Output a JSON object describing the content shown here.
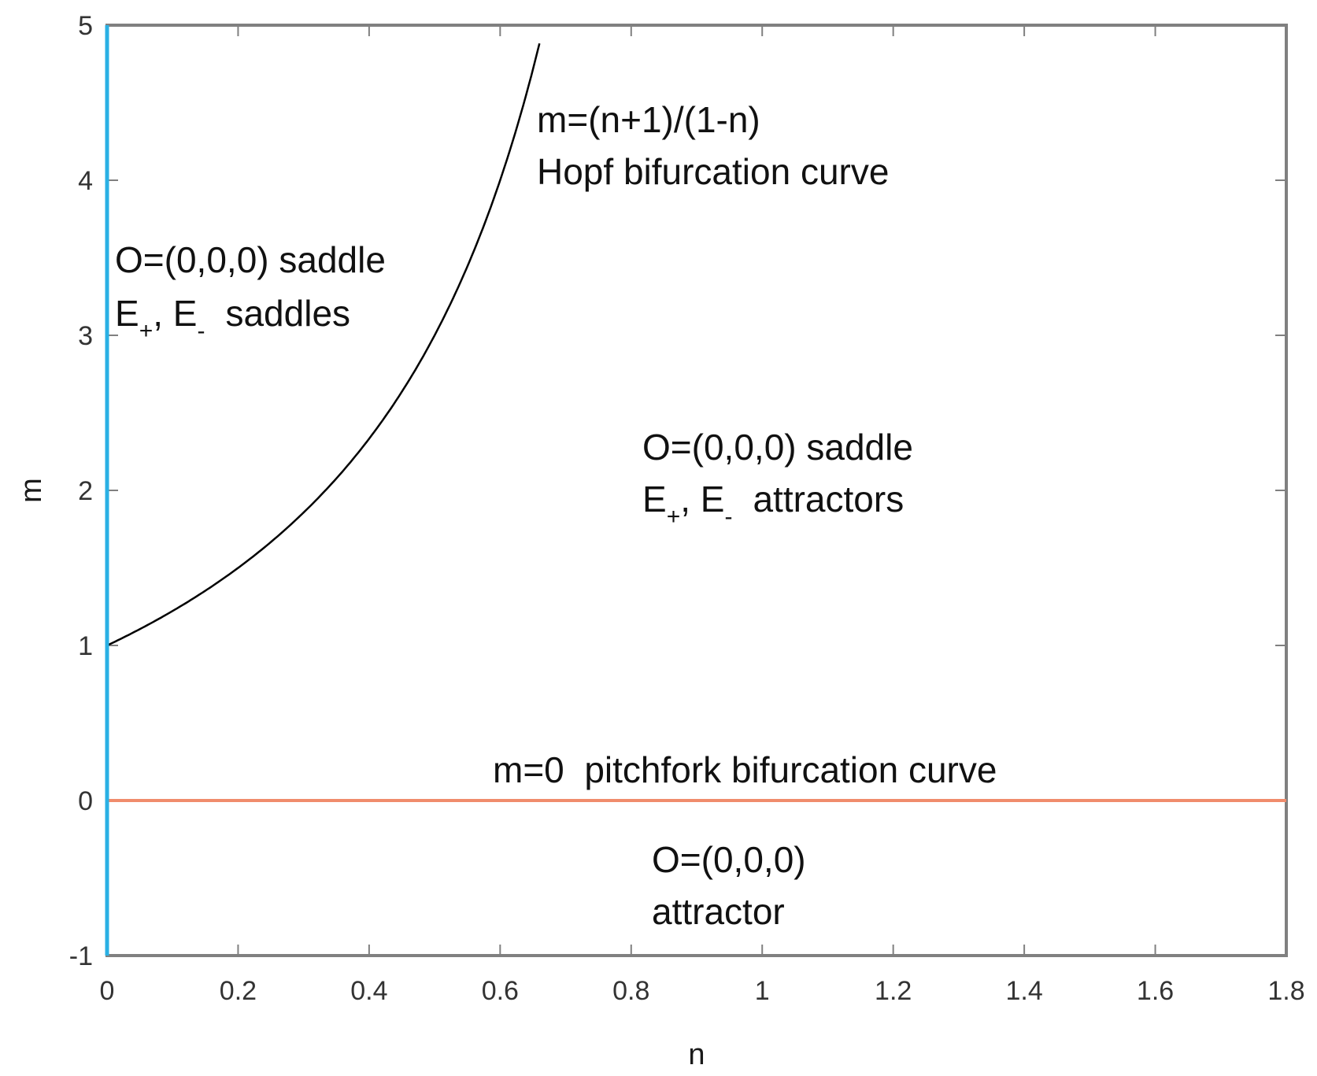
{
  "chart_data": {
    "type": "line",
    "xlabel": "n",
    "ylabel": "m",
    "xlim": [
      0,
      1.8
    ],
    "ylim": [
      -1,
      5
    ],
    "xticks": [
      "0",
      "0.2",
      "0.4",
      "0.6",
      "0.8",
      "1",
      "1.2",
      "1.4",
      "1.6",
      "1.8"
    ],
    "yticks": [
      "-1",
      "0",
      "1",
      "2",
      "3",
      "4",
      "5"
    ],
    "grid": false,
    "colors": {
      "hopf_curve": "#000000",
      "pitchfork_line": "#f08c6c",
      "m_axis_line": "#2ab0e4",
      "frame": "#808080"
    },
    "series": [
      {
        "x": [
          0,
          0.1,
          0.2,
          0.3,
          0.4,
          0.5,
          0.55,
          0.6,
          0.64,
          0.66
        ],
        "y": [
          1,
          1.222,
          1.5,
          1.857,
          2.333,
          3.0,
          3.444,
          4.0,
          4.556,
          4.882
        ]
      },
      {
        "x": [
          0,
          1.8
        ],
        "y": [
          0,
          0
        ]
      },
      {
        "x": [
          0,
          0
        ],
        "y": [
          -1,
          5
        ]
      }
    ],
    "annotations": {
      "hopf": {
        "formula": "m=(n+1)/(1-n)",
        "name": "Hopf bifurcation curve"
      },
      "region_upper_left": {
        "line1": "O=(0,0,0)  saddle",
        "e_plus": "E",
        "plus_sub": "+",
        "comma": ", ",
        "e_minus": "E",
        "minus_sub": "-",
        "state": "saddles"
      },
      "region_middle": {
        "line1": "O=(0,0,0)  saddle",
        "e_plus": "E",
        "plus_sub": "+",
        "comma": ", ",
        "e_minus": "E",
        "minus_sub": "-",
        "state": "attractors"
      },
      "pitchfork": "m=0  pitchfork bifurcation curve",
      "region_lower": {
        "line1": "O=(0,0,0)",
        "line2": "attractor"
      }
    }
  }
}
